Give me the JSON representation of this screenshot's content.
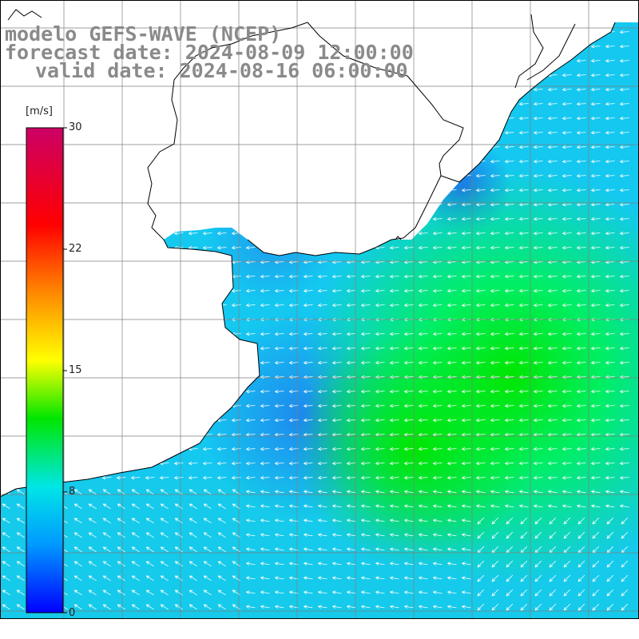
{
  "title": {
    "line1": "modelo GEFS-WAVE (NCEP)",
    "line2": "forecast date: 2024-08-09 12:00:00",
    "line3": "valid date: 2024-08-16 06:00:00"
  },
  "colorbar": {
    "unit": "[m/s]",
    "range": [
      0,
      30
    ],
    "ticks": [
      "30",
      "22",
      "15",
      "8",
      "0"
    ],
    "colors": [
      "#0000ff",
      "#0099ff",
      "#00e6e6",
      "#00e600",
      "#ffff00",
      "#ff8800",
      "#ff0000",
      "#cc0066"
    ]
  },
  "field_colors": {
    "land": "#ffffff",
    "coast": "#000000",
    "grid": "#7f7f7f",
    "arrows": "#ffffff"
  }
}
